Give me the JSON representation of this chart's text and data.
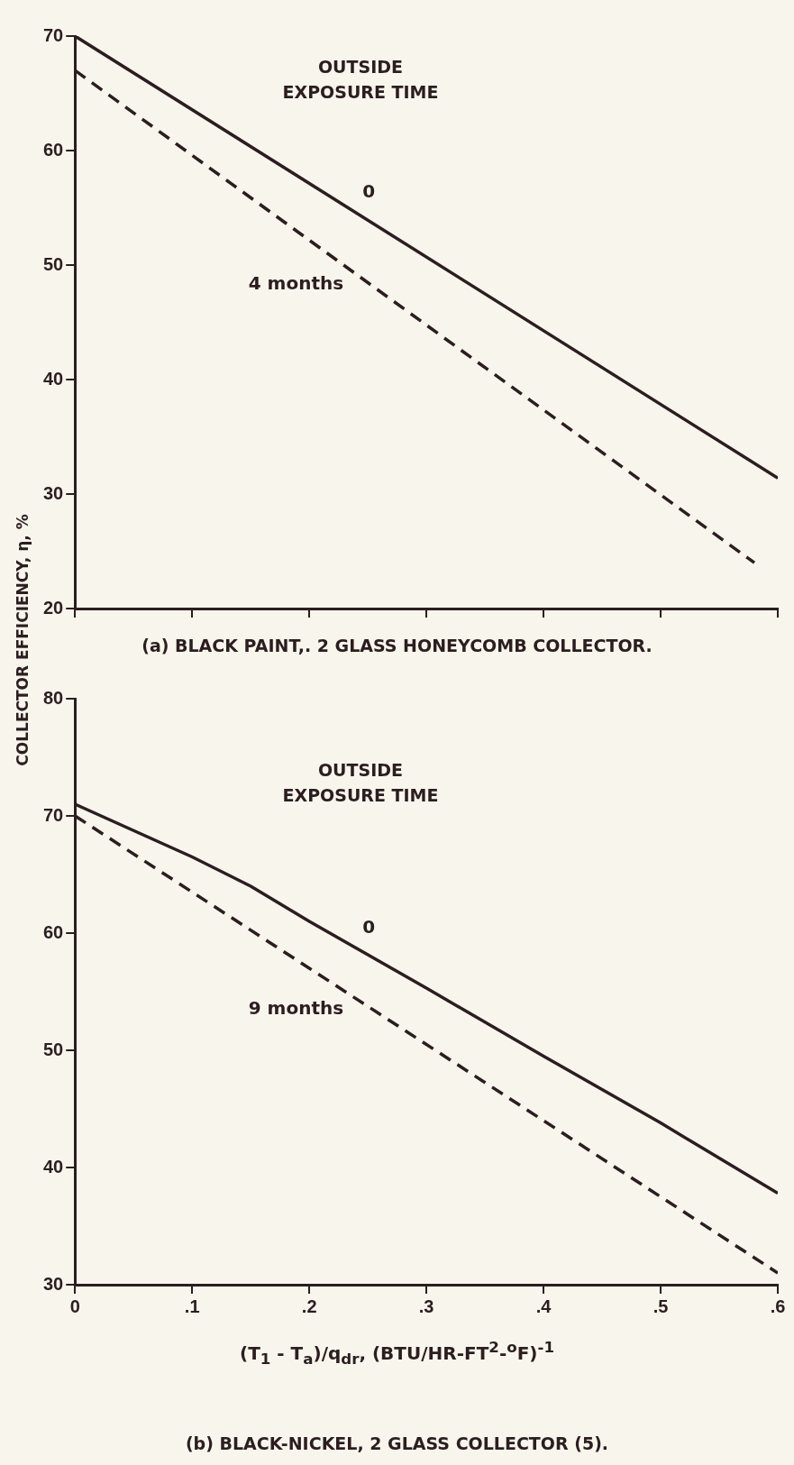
{
  "chart_data": [
    {
      "type": "line",
      "title": "(a) BLACK PAINT,. 2 GLASS HONEYCOMB COLLECTOR.",
      "ylabel": "COLLECTOR EFFICIENCY, η, %",
      "annotations": [
        "OUTSIDE EXPOSURE TIME"
      ],
      "xlim": [
        0,
        0.6
      ],
      "xticks": [
        {
          "value": 0,
          "label": null
        },
        {
          "value": 0.1,
          "label": null
        },
        {
          "value": 0.2,
          "label": null
        },
        {
          "value": 0.3,
          "label": null
        },
        {
          "value": 0.4,
          "label": null
        },
        {
          "value": 0.5,
          "label": null
        },
        {
          "value": 0.6,
          "label": null
        }
      ],
      "ylim": [
        20,
        70
      ],
      "yticks": [
        20,
        30,
        40,
        50,
        60,
        70
      ],
      "tick_labels": "y",
      "grid": false,
      "legend": false,
      "marker": "none",
      "series": [
        {
          "name": "0",
          "color": "#2b1d20",
          "line_style": "solid",
          "x": [
            0,
            0.6
          ],
          "values": [
            70,
            31.4
          ]
        },
        {
          "name": "4 months",
          "color": "#2b1d20",
          "line_style": "dashed",
          "x": [
            0,
            0.58
          ],
          "values": [
            67,
            24
          ]
        }
      ]
    },
    {
      "type": "line",
      "title": "(b) BLACK-NICKEL, 2 GLASS COLLECTOR (5).",
      "xlabel": "(T$_{1}$ - T$_{a}$)/q$_{dr}$, (BTU/HR-FT$^{2}$-$^{o}$F)$^{-1}$",
      "annotations": [
        "OUTSIDE EXPOSURE TIME"
      ],
      "xlim": [
        0,
        0.6
      ],
      "xticks": [
        {
          "value": 0,
          "label": "0"
        },
        {
          "value": 0.1,
          "label": ".1"
        },
        {
          "value": 0.2,
          "label": ".2"
        },
        {
          "value": 0.3,
          "label": ".3"
        },
        {
          "value": 0.4,
          "label": ".4"
        },
        {
          "value": 0.5,
          "label": ".5"
        },
        {
          "value": 0.6,
          "label": ".6"
        }
      ],
      "ylim": [
        30,
        80
      ],
      "yticks": [
        30,
        40,
        50,
        60,
        70,
        80
      ],
      "grid": false,
      "legend": false,
      "marker": "none",
      "series": [
        {
          "name": "0",
          "color": "#2b1d20",
          "line_style": "solid",
          "x": [
            0,
            0.1,
            0.15,
            0.2,
            0.3,
            0.4,
            0.5,
            0.6
          ],
          "values": [
            71,
            66.5,
            64,
            61,
            55.3,
            49.5,
            43.8,
            37.8
          ]
        },
        {
          "name": "9 months",
          "color": "#2b1d20",
          "line_style": "dashed",
          "x": [
            0,
            0.1,
            0.2,
            0.3,
            0.4,
            0.5,
            0.6
          ],
          "values": [
            70,
            63.5,
            57,
            50.5,
            44,
            37.5,
            31
          ]
        }
      ]
    }
  ]
}
